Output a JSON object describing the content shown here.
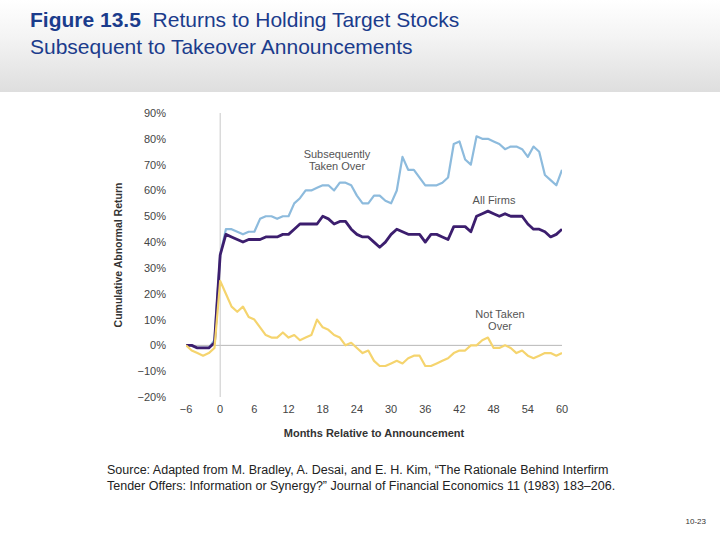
{
  "chart_data": {
    "type": "line",
    "figure_label": "Figure 13.5",
    "title": "Returns to Holding Target Stocks",
    "subtitle": "Subsequent to Takeover Announcements",
    "x_label": "Months Relative to Announcement",
    "y_label": "Cumulative Abnormal Return",
    "x": [
      -6,
      -5,
      -4,
      -3,
      -2,
      -1,
      0,
      1,
      2,
      3,
      4,
      5,
      6,
      7,
      8,
      9,
      10,
      11,
      12,
      13,
      14,
      15,
      16,
      17,
      18,
      19,
      20,
      21,
      22,
      23,
      24,
      25,
      26,
      27,
      28,
      29,
      30,
      31,
      32,
      33,
      34,
      35,
      36,
      37,
      38,
      39,
      40,
      41,
      42,
      43,
      44,
      45,
      46,
      47,
      48,
      49,
      50,
      51,
      52,
      53,
      54,
      55,
      56,
      57,
      58,
      59,
      60
    ],
    "series": [
      {
        "name": "Subsequently Taken Over",
        "color": "#8dbbdd",
        "values": [
          0,
          0,
          -1,
          -1,
          -1,
          2,
          35,
          45,
          45,
          44,
          43,
          44,
          44,
          49,
          50,
          50,
          49,
          50,
          50,
          55,
          57,
          60,
          60,
          61,
          62,
          62,
          60,
          63,
          63,
          62,
          58,
          55,
          55,
          58,
          58,
          56,
          55,
          60,
          73,
          68,
          68,
          65,
          62,
          62,
          62,
          63,
          65,
          78,
          79,
          72,
          70,
          81,
          80,
          80,
          79,
          78,
          76,
          77,
          77,
          76,
          73,
          77,
          75,
          66,
          64,
          62,
          68
        ]
      },
      {
        "name": "All Firms",
        "color": "#3c1e6e",
        "values": [
          0,
          0,
          -1,
          -1,
          -1,
          1,
          35,
          43,
          42,
          41,
          40,
          41,
          41,
          41,
          42,
          42,
          42,
          43,
          43,
          45,
          47,
          47,
          47,
          47,
          50,
          49,
          47,
          48,
          48,
          45,
          43,
          42,
          42,
          40,
          38,
          40,
          43,
          45,
          44,
          43,
          43,
          43,
          40,
          43,
          43,
          42,
          41,
          46,
          46,
          46,
          44,
          50,
          51,
          52,
          51,
          50,
          51,
          50,
          50,
          50,
          47,
          45,
          45,
          44,
          42,
          43,
          45
        ]
      },
      {
        "name": "Not Taken Over",
        "color": "#f5d46e",
        "values": [
          0,
          -2,
          -3,
          -4,
          -3,
          -1,
          25,
          20,
          15,
          13,
          15,
          11,
          10,
          7,
          4,
          3,
          3,
          5,
          3,
          4,
          2,
          3,
          4,
          10,
          7,
          6,
          4,
          3,
          0,
          1,
          -1,
          -3,
          -2,
          -6,
          -8,
          -8,
          -7,
          -6,
          -7,
          -5,
          -4,
          -4,
          -8,
          -8,
          -7,
          -6,
          -5,
          -3,
          -2,
          -2,
          0,
          0,
          2,
          3,
          -1,
          -1,
          0,
          -1,
          -3,
          -2,
          -4,
          -5,
          -4,
          -3,
          -3,
          -4,
          -3
        ]
      }
    ],
    "xlim": [
      -6,
      60
    ],
    "xticks": [
      {
        "value": -6,
        "label": "−6"
      },
      0,
      6,
      12,
      18,
      24,
      30,
      36,
      42,
      48,
      54,
      60
    ],
    "ylim": [
      -20,
      90
    ],
    "yticks": [
      {
        "value": -20,
        "label": "−20%"
      },
      {
        "value": -10,
        "label": "−10%"
      },
      {
        "value": 0,
        "label": "0%"
      },
      {
        "value": 10,
        "label": "10%"
      },
      {
        "value": 20,
        "label": "20%"
      },
      {
        "value": 30,
        "label": "30%"
      },
      {
        "value": 40,
        "label": "40%"
      },
      {
        "value": 50,
        "label": "50%"
      },
      {
        "value": 60,
        "label": "60%"
      },
      {
        "value": 70,
        "label": "70%"
      },
      {
        "value": 80,
        "label": "80%"
      },
      {
        "value": 90,
        "label": "90%"
      }
    ],
    "grid": false,
    "source": "Source: Adapted from M. Bradley, A. Desai, and E. H. Kim, “The Rationale Behind Interfirm Tender Offers: Information or Synergy?” Journal of Financial Economics 11 (1983) 183–206.",
    "page_number": "10-23"
  }
}
